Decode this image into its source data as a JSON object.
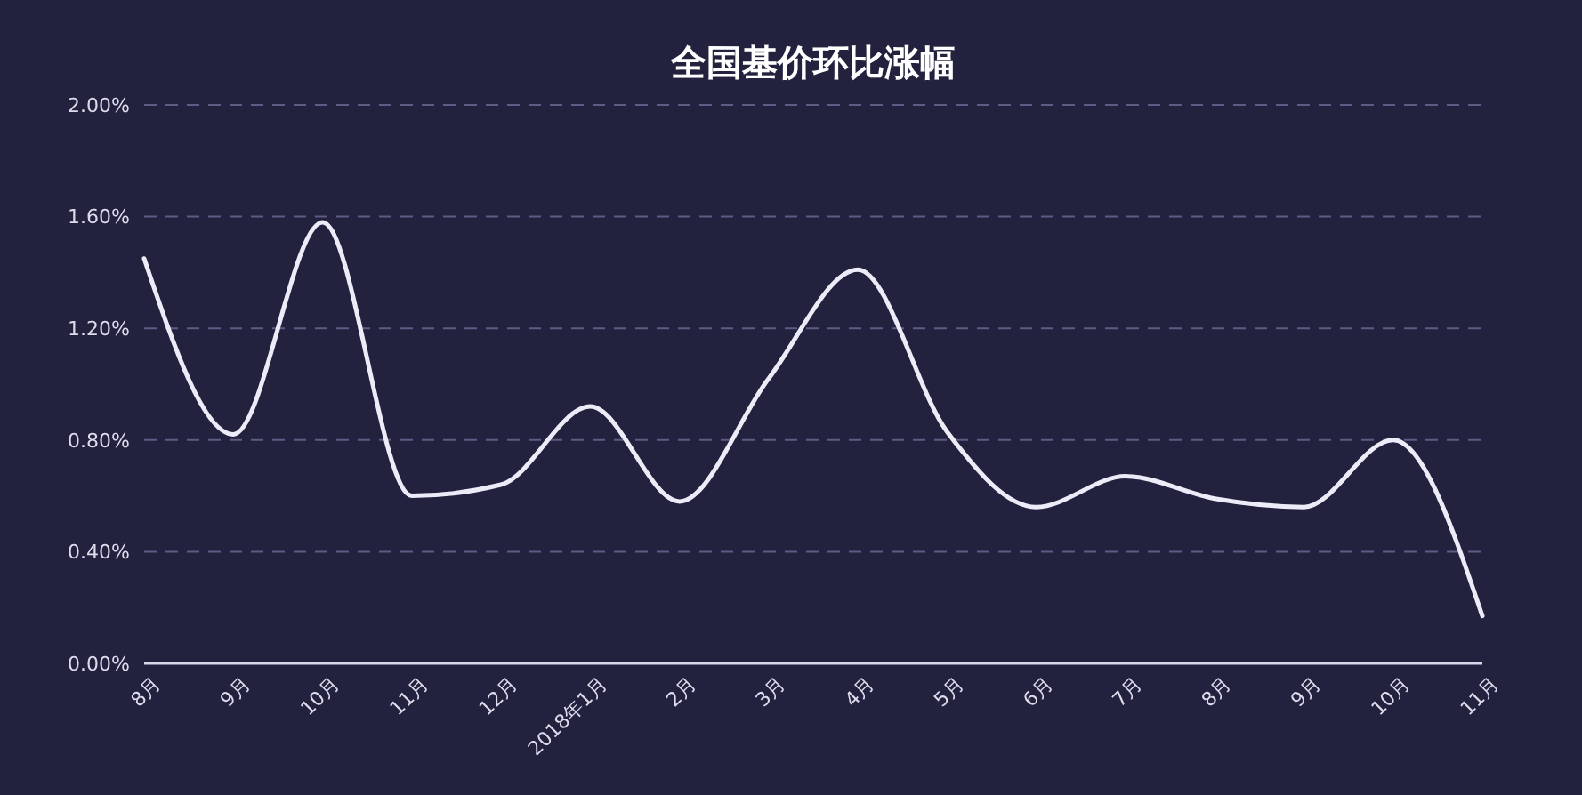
{
  "chart_data": {
    "type": "line",
    "title": "全国基价环比涨幅",
    "categories": [
      "8月",
      "9月",
      "10月",
      "11月",
      "12月",
      "2018年1月",
      "2月",
      "3月",
      "4月",
      "5月",
      "6月",
      "7月",
      "8月",
      "9月",
      "10月",
      "11月"
    ],
    "series": [
      {
        "color": "#ececf8",
        "values": [
          1.45,
          0.82,
          1.58,
          0.6,
          0.64,
          0.92,
          0.58,
          1.02,
          1.41,
          0.83,
          0.56,
          0.67,
          0.59,
          0.56,
          0.8,
          0.17
        ]
      }
    ],
    "ylim": [
      0,
      2
    ],
    "yticks": [
      {
        "value": 0,
        "label": "0.00%"
      },
      {
        "value": 0.4,
        "label": "0.40%"
      },
      {
        "value": 0.8,
        "label": "0.80%"
      },
      {
        "value": 1.2,
        "label": "1.20%"
      },
      {
        "value": 1.6,
        "label": "1.60%"
      },
      {
        "value": 2,
        "label": "2.00%"
      }
    ],
    "grid": "y",
    "line_style": "solid"
  }
}
